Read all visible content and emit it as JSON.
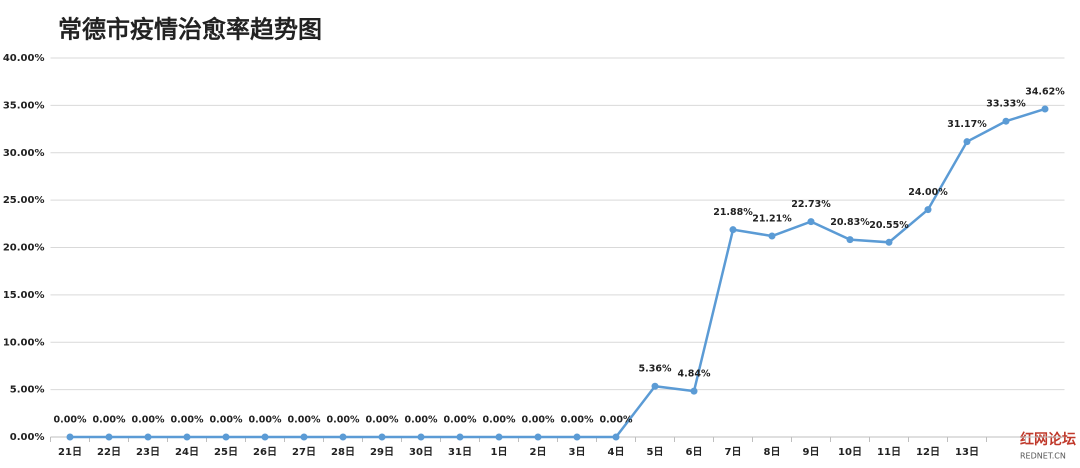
{
  "chart_data": {
    "type": "line",
    "title": "常德市疫情治愈率趋势图",
    "categories": [
      "21日",
      "22日",
      "23日",
      "24日",
      "25日",
      "26日",
      "27日",
      "28日",
      "29日",
      "30日",
      "31日",
      "1日",
      "2日",
      "3日",
      "4日",
      "5日",
      "6日",
      "7日",
      "8日",
      "9日",
      "10日",
      "11日",
      "12日",
      "13日",
      null,
      null
    ],
    "series": [
      {
        "color": "#5b9bd5",
        "values": [
          0,
          0,
          0,
          0,
          0,
          0,
          0,
          0,
          0,
          0,
          0,
          0,
          0,
          0,
          0,
          5.36,
          4.84,
          21.88,
          21.21,
          22.73,
          20.83,
          20.55,
          24.0,
          31.17,
          33.33,
          34.62
        ],
        "value_labels": [
          "0.00%",
          "0.00%",
          "0.00%",
          "0.00%",
          "0.00%",
          "0.00%",
          "0.00%",
          "0.00%",
          "0.00%",
          "0.00%",
          "0.00%",
          "0.00%",
          "0.00%",
          "0.00%",
          "0.00%",
          "5.36%",
          "4.84%",
          "21.88%",
          "21.21%",
          "22.73%",
          "20.83%",
          "20.55%",
          "24.00%",
          "31.17%",
          "33.33%",
          "34.62%"
        ]
      }
    ],
    "ylim": [
      0,
      40
    ],
    "yticks": [
      {
        "value": 0,
        "label": "0.00%"
      },
      {
        "value": 5,
        "label": "5.00%"
      },
      {
        "value": 10,
        "label": "10.00%"
      },
      {
        "value": 15,
        "label": "15.00%"
      },
      {
        "value": 20,
        "label": "20.00%"
      },
      {
        "value": 25,
        "label": "25.00%"
      },
      {
        "value": 30,
        "label": "30.00%"
      },
      {
        "value": 35,
        "label": "35.00%"
      },
      {
        "value": 40,
        "label": "40.00%"
      }
    ],
    "grid": true,
    "watermark": {
      "name": "红网论坛",
      "site": "REDNET.CN"
    }
  }
}
